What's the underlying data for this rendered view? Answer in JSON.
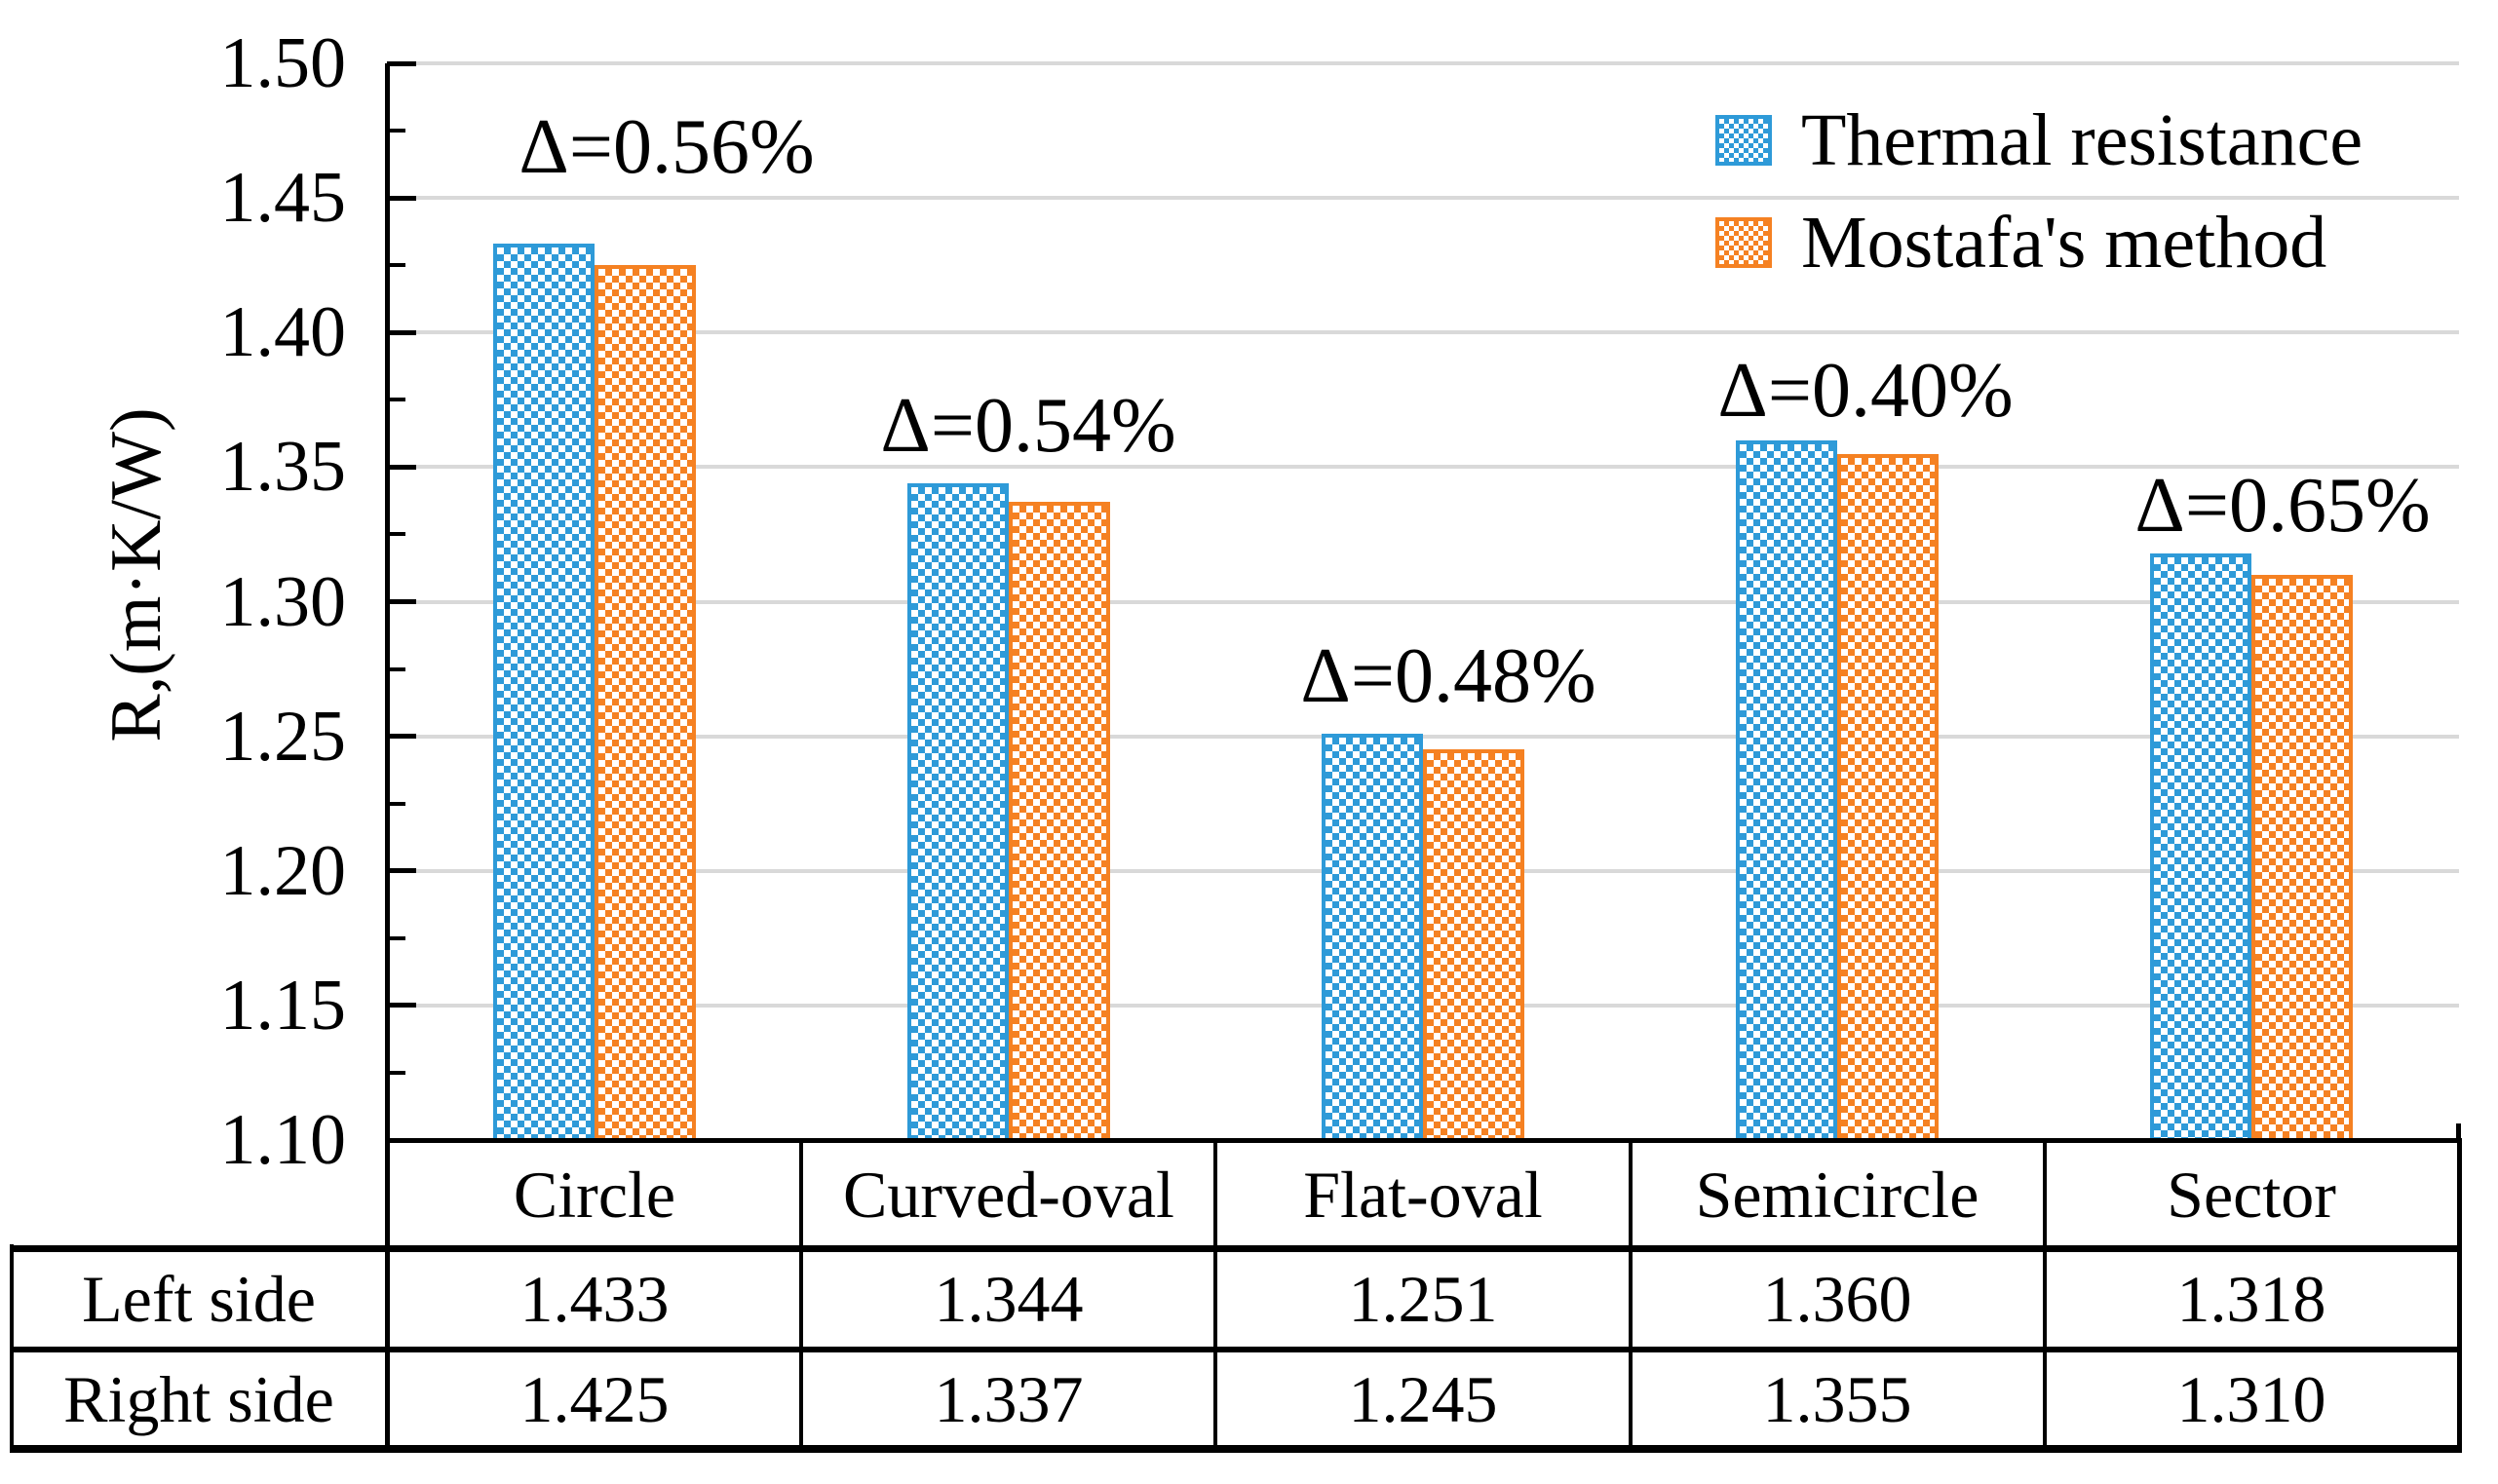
{
  "colors": {
    "series1": "#2E9AD8",
    "series2": "#F58122",
    "gridline": "#D9D9D9",
    "axis": "#000000",
    "text": "#000000",
    "background": "#ffffff"
  },
  "chart_data": {
    "type": "bar",
    "title": "",
    "xlabel": "",
    "ylabel": "R,(m·K/W)",
    "categories": [
      "Circle",
      "Curved-oval",
      "Flat-oval",
      "Semicircle",
      "Sector"
    ],
    "series": [
      {
        "name": "Thermal resistance",
        "color": "#2E9AD8",
        "values": [
          1.433,
          1.344,
          1.251,
          1.36,
          1.318
        ]
      },
      {
        "name": "Mostafa's method",
        "color": "#F58122",
        "values": [
          1.425,
          1.337,
          1.245,
          1.355,
          1.31
        ]
      }
    ],
    "annotations": [
      "Δ=0.56%",
      "Δ=0.54%",
      "Δ=0.48%",
      "Δ=0.40%",
      "Δ=0.65%"
    ],
    "ylim": [
      1.1,
      1.5
    ],
    "ytick_step": 0.05,
    "yminor_tick_step": 0.025,
    "ytick_labels": [
      "1.10",
      "1.15",
      "1.20",
      "1.25",
      "1.30",
      "1.35",
      "1.40",
      "1.45",
      "1.50"
    ],
    "grid": "horizontal-major",
    "legend_position": "top-right-inside",
    "bar_fill_pattern": "dotted-diamond"
  },
  "legend": {
    "items": [
      {
        "label": "Thermal resistance",
        "color": "#2E9AD8"
      },
      {
        "label": "Mostafa's method",
        "color": "#F58122"
      }
    ]
  },
  "table": {
    "column_headers": [
      "Circle",
      "Curved-oval",
      "Flat-oval",
      "Semicircle",
      "Sector"
    ],
    "rows": [
      {
        "header": "Left side",
        "values": [
          "1.433",
          "1.344",
          "1.251",
          "1.360",
          "1.318"
        ]
      },
      {
        "header": "Right side",
        "values": [
          "1.425",
          "1.337",
          "1.245",
          "1.355",
          "1.310"
        ]
      }
    ]
  }
}
